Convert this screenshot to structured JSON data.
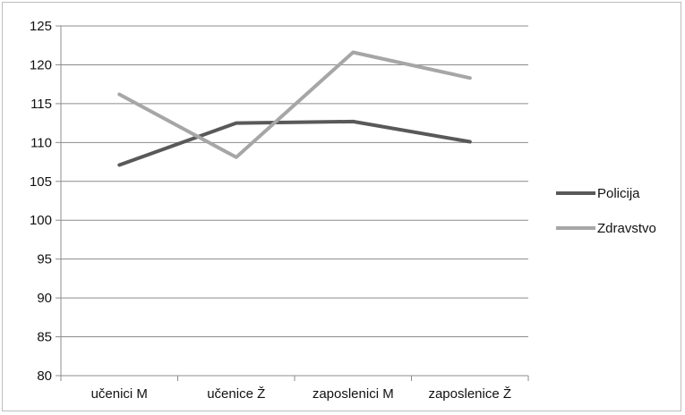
{
  "chart_data": {
    "type": "line",
    "categories": [
      "učenici M",
      "učenice Ž",
      "zaposlenici M",
      "zaposlenice Ž"
    ],
    "series": [
      {
        "name": "Policija",
        "values": [
          107.1,
          112.5,
          112.7,
          110.1
        ],
        "color": "#595959"
      },
      {
        "name": "Zdravstvo",
        "values": [
          116.2,
          108.1,
          121.6,
          118.3
        ],
        "color": "#a6a6a6"
      }
    ],
    "title": "",
    "xlabel": "",
    "ylabel": "",
    "ylim": [
      80,
      125
    ],
    "yticks": [
      80,
      85,
      90,
      95,
      100,
      105,
      110,
      115,
      120,
      125
    ],
    "grid": true,
    "legend": "right"
  }
}
